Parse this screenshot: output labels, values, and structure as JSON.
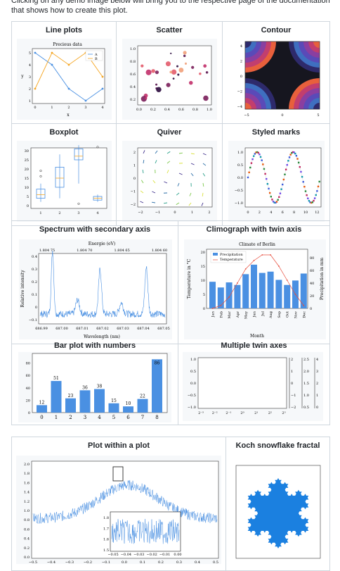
{
  "intro_text": "Clicking on any demo image below will bring you to the respective page of the documentation that shows how to create this plot.",
  "gallery": {
    "row1": [
      "Line plots",
      "Scatter",
      "Contour"
    ],
    "row2": [
      "Boxplot",
      "Quiver",
      "Styled marks"
    ],
    "row3": [
      "Spectrum with secondary axis",
      "Climograph with twin axis"
    ],
    "row4": [
      "Bar plot with numbers",
      "Multiple twin axes"
    ],
    "row5": [
      "Plot within a plot",
      "Koch snowflake fractal"
    ]
  },
  "line_plot": {
    "title": "Precious data",
    "xlabel": "x",
    "ylabel": "y",
    "legend": [
      "A",
      "B"
    ],
    "x": [
      0,
      1,
      2,
      3,
      4
    ],
    "A": [
      5,
      4,
      2,
      1,
      2
    ],
    "B": [
      2,
      5,
      4,
      5,
      3
    ],
    "xticks": [
      "0",
      "1",
      "2",
      "3",
      "4"
    ],
    "yticks": [
      "1",
      "2",
      "3",
      "4",
      "5"
    ]
  },
  "scatter": {
    "xticks": [
      "0.0",
      "0.2",
      "0.4",
      "0.6",
      "0.8",
      "1.0"
    ],
    "yticks": [
      "0.2",
      "0.4",
      "0.6",
      "0.8",
      "1.0"
    ]
  },
  "contour": {
    "xticks": [
      "−5",
      "0",
      "5"
    ],
    "yticks": [
      "−4",
      "−2",
      "0",
      "2",
      "4"
    ]
  },
  "boxplot": {
    "xticks": [
      "1",
      "2",
      "3",
      "4"
    ],
    "yticks": [
      "0",
      "5",
      "10",
      "15",
      "20",
      "25",
      "30"
    ]
  },
  "quiver": {
    "xticks": [
      "−2",
      "−1",
      "0",
      "1",
      "2"
    ],
    "yticks": [
      "−2",
      "−1",
      "0",
      "1",
      "2"
    ]
  },
  "styled_marks": {
    "xticks": [
      "0",
      "2",
      "4",
      "6",
      "8",
      "10",
      "12"
    ],
    "yticks": [
      "−1.0",
      "−0.5",
      "0.0",
      "0.5",
      "1.0"
    ]
  },
  "spectrum": {
    "top_label": "Energie (eV)",
    "top_ticks": [
      "1.804 75",
      "1.804 70",
      "1.804 65",
      "1.804 60"
    ],
    "xlabel": "Wavelength (nm)",
    "ylabel": "Relative intensity",
    "xticks": [
      "686.99",
      "687.00",
      "687.01",
      "687.02",
      "687.03",
      "687.04",
      "687.05"
    ],
    "yticks": [
      "0.4",
      "0.3",
      "0.2",
      "0.1",
      "0",
      "−0.1"
    ]
  },
  "climograph": {
    "title": "Climate of Berlin",
    "legend": [
      "Precipitation",
      "Temperature"
    ],
    "xlabel": "Month",
    "ylabel_left": "Temperature in °C",
    "ylabel_right": "Precipitation in mm",
    "months": [
      "Jan",
      "Feb",
      "Mar",
      "Apr",
      "May",
      "Jun",
      "Jul",
      "Aug",
      "Sep",
      "Oct",
      "Nov",
      "Dec"
    ],
    "precip": [
      42,
      33,
      41,
      37,
      54,
      69,
      56,
      58,
      45,
      37,
      44,
      55
    ],
    "temp": [
      0,
      1,
      4,
      9,
      14,
      17,
      19,
      19,
      15,
      10,
      5,
      1
    ],
    "yticks_left": [
      "0",
      "5",
      "10",
      "15",
      "20"
    ],
    "yticks_right": [
      "0",
      "20",
      "40",
      "60",
      "80"
    ]
  },
  "bar_numbers": {
    "categories": [
      "0",
      "1",
      "2",
      "3",
      "4",
      "5",
      "6",
      "7",
      "8"
    ],
    "values": [
      12,
      51,
      23,
      36,
      38,
      15,
      10,
      22,
      86
    ],
    "yticks": [
      "0",
      "20",
      "40",
      "60",
      "80"
    ]
  },
  "twin_axes": {
    "yticks": [
      "−1.0",
      "−0.5",
      "0.0",
      "0.5",
      "1.0"
    ],
    "xticks": [
      "2⁻³",
      "2⁻²",
      "2⁻¹",
      "2⁰",
      "2¹",
      "2²",
      "2³"
    ],
    "axis2": [
      "2",
      "1",
      "0",
      "−1",
      "−2"
    ],
    "axis3": [
      "2.5",
      "2.0",
      "1.5",
      "1.0",
      "0.5"
    ],
    "axis4": [
      "4",
      "3",
      "2",
      "1",
      "0"
    ]
  },
  "plot_in_plot": {
    "xticks": [
      "−0.5",
      "−0.4",
      "−0.3",
      "−0.2",
      "−0.1",
      "0.0",
      "0.1",
      "0.2",
      "0.3",
      "0.4",
      "0.5"
    ],
    "yticks": [
      "0.0",
      "0.2",
      "0.4",
      "0.6",
      "0.8",
      "1.0",
      "1.2",
      "1.4",
      "1.6",
      "1.8",
      "2.0"
    ],
    "inset_xticks": [
      "−0.05",
      "−0.04",
      "−0.03",
      "−0.02",
      "−0.01",
      "0.00"
    ],
    "inset_yticks": [
      "1.8",
      "1.7",
      "1.6",
      "1.5"
    ]
  },
  "colors": {
    "blue": "#4a90e2",
    "orange": "#f5a623",
    "red": "#e74c3c",
    "koch": "#1b80e0",
    "border": "#d0d7de"
  }
}
